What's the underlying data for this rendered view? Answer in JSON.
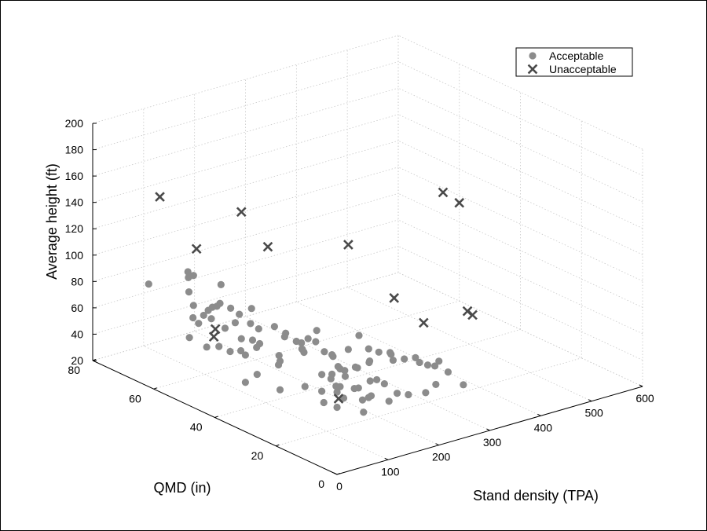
{
  "chart_data": {
    "type": "scatter",
    "projection": "3d",
    "xlabel": "Stand density (TPA)",
    "ylabel": "QMD (in)",
    "zlabel": "Average height (ft)",
    "xlim": [
      0,
      600
    ],
    "ylim": [
      0,
      80
    ],
    "zlim": [
      20,
      200
    ],
    "xticks": [
      "0",
      "100",
      "200",
      "300",
      "400",
      "500",
      "600"
    ],
    "yticks": [
      "0",
      "20",
      "40",
      "60",
      "80"
    ],
    "zticks": [
      "20",
      "40",
      "60",
      "80",
      "100",
      "120",
      "140",
      "160",
      "180",
      "200"
    ],
    "grid": true,
    "legend_position": "top-right",
    "colors": {
      "acceptable": "#8c8c8c",
      "unacceptable": "#4a4a4a"
    },
    "series": [
      {
        "name": "Acceptable",
        "marker": "circle",
        "points": [
          [
            55,
            58,
            105
          ],
          [
            68,
            60,
            97
          ],
          [
            45,
            56,
            93
          ],
          [
            50,
            52,
            79
          ],
          [
            70,
            50,
            88
          ],
          [
            20,
            65,
            92
          ],
          [
            90,
            62,
            94
          ],
          [
            40,
            55,
            60
          ],
          [
            50,
            51,
            56
          ],
          [
            100,
            56,
            76
          ],
          [
            65,
            53,
            80
          ],
          [
            60,
            45,
            58
          ],
          [
            120,
            58,
            88
          ],
          [
            80,
            52,
            52
          ],
          [
            100,
            48,
            60
          ],
          [
            75,
            44,
            58
          ],
          [
            110,
            46,
            60
          ],
          [
            40,
            52,
            74
          ],
          [
            120,
            52,
            72
          ],
          [
            150,
            53,
            72
          ],
          [
            90,
            45,
            52
          ],
          [
            130,
            47,
            54
          ],
          [
            95,
            42,
            40
          ],
          [
            60,
            40,
            40
          ],
          [
            125,
            40,
            46
          ],
          [
            130,
            48,
            50
          ],
          [
            150,
            44,
            46
          ],
          [
            140,
            42,
            45
          ],
          [
            110,
            37,
            32
          ],
          [
            175,
            46,
            58
          ],
          [
            185,
            48,
            52
          ],
          [
            160,
            38,
            56
          ],
          [
            175,
            40,
            50
          ],
          [
            195,
            44,
            46
          ],
          [
            200,
            45,
            49
          ],
          [
            210,
            42,
            52
          ],
          [
            215,
            40,
            46
          ],
          [
            220,
            38,
            44
          ],
          [
            230,
            40,
            42
          ],
          [
            180,
            35,
            38
          ],
          [
            200,
            33,
            44
          ],
          [
            220,
            30,
            44
          ],
          [
            225,
            35,
            36
          ],
          [
            240,
            34,
            38
          ],
          [
            255,
            32,
            42
          ],
          [
            265,
            37,
            56
          ],
          [
            280,
            33,
            46
          ],
          [
            290,
            30,
            42
          ],
          [
            300,
            28,
            44
          ],
          [
            310,
            26,
            46
          ],
          [
            280,
            36,
            36
          ],
          [
            330,
            28,
            38
          ],
          [
            340,
            27,
            36
          ],
          [
            350,
            25,
            40
          ],
          [
            360,
            28,
            32
          ],
          [
            240,
            27,
            36
          ],
          [
            215,
            25,
            40
          ],
          [
            225,
            22,
            40
          ],
          [
            160,
            27,
            40
          ],
          [
            150,
            24,
            44
          ],
          [
            145,
            22,
            38
          ],
          [
            170,
            20,
            36
          ],
          [
            120,
            20,
            36
          ],
          [
            130,
            26,
            32
          ],
          [
            160,
            18,
            30
          ],
          [
            170,
            18,
            40
          ],
          [
            190,
            26,
            36
          ],
          [
            210,
            28,
            32
          ],
          [
            250,
            22,
            30
          ],
          [
            260,
            20,
            30
          ],
          [
            135,
            33,
            36
          ],
          [
            150,
            30,
            34
          ],
          [
            180,
            32,
            38
          ],
          [
            210,
            34,
            40
          ],
          [
            160,
            40,
            60
          ],
          [
            195,
            42,
            56
          ],
          [
            230,
            45,
            55
          ],
          [
            165,
            48,
            62
          ],
          [
            140,
            49,
            62
          ],
          [
            115,
            54,
            75
          ],
          [
            130,
            50,
            66
          ],
          [
            65,
            58,
            69
          ],
          [
            95,
            57,
            66
          ],
          [
            60,
            57,
            80
          ],
          [
            80,
            50,
            68
          ],
          [
            85,
            55,
            78
          ],
          [
            100,
            50,
            70
          ],
          [
            310,
            34,
            40
          ],
          [
            320,
            36,
            38
          ],
          [
            290,
            38,
            42
          ],
          [
            250,
            38,
            46
          ],
          [
            200,
            35,
            36
          ],
          [
            180,
            30,
            30
          ],
          [
            190,
            29,
            42
          ],
          [
            205,
            23,
            32
          ],
          [
            240,
            23,
            24
          ],
          [
            300,
            21,
            26
          ],
          [
            380,
            22,
            22
          ],
          [
            350,
            22,
            35
          ],
          [
            320,
            21,
            30
          ]
        ]
      },
      {
        "name": "Unacceptable",
        "marker": "x",
        "points": [
          [
            0,
            58,
            168
          ],
          [
            12,
            48,
            138
          ],
          [
            10,
            42,
            78
          ],
          [
            25,
            44,
            80
          ],
          [
            190,
            63,
            130
          ],
          [
            200,
            56,
            110
          ],
          [
            165,
            27,
            30
          ],
          [
            310,
            48,
            108
          ],
          [
            340,
            38,
            75
          ],
          [
            380,
            35,
            55
          ],
          [
            520,
            52,
            120
          ],
          [
            540,
            50,
            112
          ],
          [
            460,
            34,
            56
          ],
          [
            470,
            34,
            52
          ]
        ]
      }
    ]
  }
}
